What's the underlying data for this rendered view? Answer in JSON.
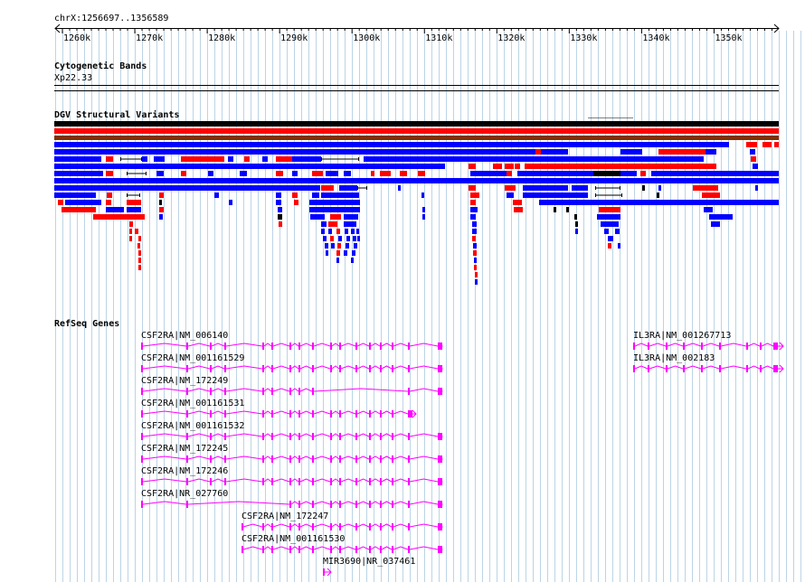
{
  "coords": "chrX:1256697..1356589",
  "ruler": {
    "ticks": [
      "1260k",
      "1270k",
      "1280k",
      "1290k",
      "1300k",
      "1310k",
      "1320k",
      "1330k",
      "1340k",
      "1350k"
    ]
  },
  "tracks": {
    "cytoband": {
      "title": "Cytogenetic Bands",
      "band": "Xp22.33"
    },
    "dgv": {
      "title": "DGV Structural Variants"
    },
    "refseq": {
      "title": "RefSeq Genes"
    }
  },
  "genes": [
    "CSF2RA|NM_006140",
    "CSF2RA|NM_001161529",
    "CSF2RA|NM_172249",
    "CSF2RA|NM_001161531",
    "CSF2RA|NM_001161532",
    "CSF2RA|NM_172245",
    "CSF2RA|NM_172246",
    "CSF2RA|NR_027760",
    "CSF2RA|NM_172247",
    "CSF2RA|NM_001161530",
    "MIR3690|NR_037461",
    "IL3RA|NM_001267713",
    "IL3RA|NM_002183"
  ],
  "colors": {
    "gain": "#0000ff",
    "loss": "#ff0000",
    "complex": "#000000",
    "gene": "#ff00ff",
    "grid": "#bcd4e6"
  }
}
